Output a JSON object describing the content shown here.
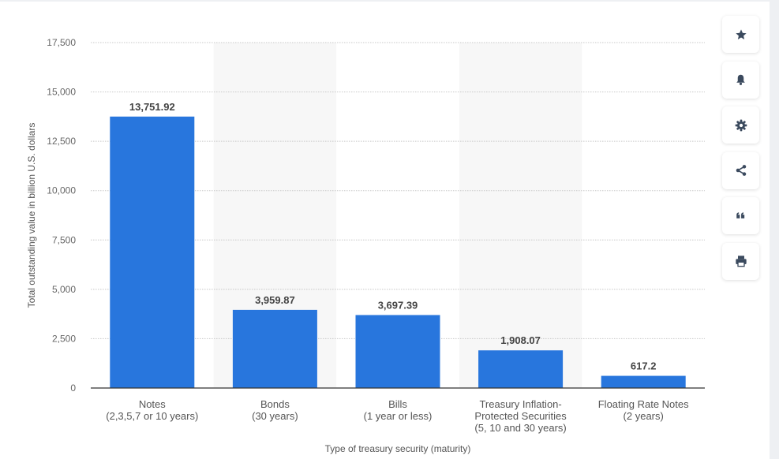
{
  "colors": {
    "bar": "#2876dd",
    "grid": "#c8c8c8",
    "band": "#f7f7f7",
    "icon": "#3b4a5e"
  },
  "toolbar": {
    "buttons": [
      {
        "name": "favorite-button",
        "icon": "star-icon"
      },
      {
        "name": "notification-button",
        "icon": "bell-icon"
      },
      {
        "name": "settings-button",
        "icon": "gear-icon"
      },
      {
        "name": "share-button",
        "icon": "share-icon"
      },
      {
        "name": "cite-button",
        "icon": "quote-icon"
      },
      {
        "name": "print-button",
        "icon": "printer-icon"
      }
    ]
  },
  "chart_data": {
    "type": "bar",
    "categories": [
      [
        "Notes",
        "(2,3,5,7 or 10 years)"
      ],
      [
        "Bonds",
        "(30 years)"
      ],
      [
        "Bills",
        "(1 year or less)"
      ],
      [
        "Treasury Inflation-",
        "Protected Securities",
        "(5, 10 and 30 years)"
      ],
      [
        "Floating Rate Notes",
        "(2 years)"
      ]
    ],
    "values": [
      13751.92,
      3959.87,
      3697.39,
      1908.07,
      617.2
    ],
    "value_labels": [
      "13,751.92",
      "3,959.87",
      "3,697.39",
      "1,908.07",
      "617.2"
    ],
    "ylim": [
      0,
      17500
    ],
    "yticks": [
      0,
      2500,
      5000,
      7500,
      10000,
      12500,
      15000,
      17500
    ],
    "ytick_labels": [
      "0",
      "2,500",
      "5,000",
      "7,500",
      "10,000",
      "12,500",
      "15,000",
      "17,500"
    ],
    "xlabel": "Type of treasury security (maturity)",
    "ylabel": "Total outstanding value in billion U.S. dollars",
    "grid": true,
    "legend": false
  }
}
